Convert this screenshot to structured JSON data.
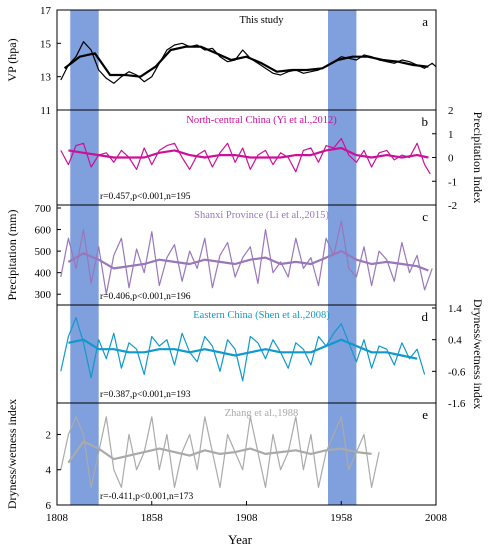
{
  "figure": {
    "x_axis_label": "Year",
    "x_ticks": [
      "1808",
      "1858",
      "1908",
      "1958",
      "2008"
    ],
    "x_range": [
      1808,
      2008
    ],
    "highlight_periods": [
      [
        1815,
        1830
      ],
      [
        1951,
        1966
      ]
    ],
    "highlight_color": "#7f9fdd"
  },
  "chart_data": [
    {
      "type": "line",
      "panel_letter": "a",
      "legend": "This study",
      "ylabel_left": "VP (hpa)",
      "ylim": [
        11,
        17
      ],
      "yticks": [
        "11",
        "13",
        "15",
        "17"
      ],
      "color": "#000000",
      "x_start": 1810,
      "x_end": 2008,
      "series": [
        {
          "name": "annual",
          "x": [
            1810,
            1814,
            1818,
            1822,
            1826,
            1830,
            1834,
            1838,
            1842,
            1846,
            1850,
            1854,
            1858,
            1862,
            1866,
            1870,
            1874,
            1878,
            1882,
            1886,
            1890,
            1894,
            1898,
            1902,
            1906,
            1910,
            1914,
            1918,
            1922,
            1926,
            1930,
            1934,
            1938,
            1942,
            1946,
            1950,
            1954,
            1958,
            1962,
            1966,
            1970,
            1974,
            1978,
            1982,
            1986,
            1990,
            1994,
            1998,
            2002,
            2006,
            2008
          ],
          "values": [
            12.8,
            13.7,
            14.2,
            15.1,
            14.6,
            13.4,
            12.9,
            12.6,
            13.0,
            13.3,
            13.1,
            12.7,
            13.0,
            13.8,
            14.6,
            14.9,
            15.0,
            14.8,
            14.9,
            14.6,
            14.7,
            14.2,
            13.9,
            14.0,
            14.6,
            14.1,
            13.8,
            13.5,
            13.2,
            13.1,
            13.3,
            13.4,
            13.2,
            13.3,
            13.4,
            13.6,
            13.9,
            14.2,
            14.1,
            14.0,
            14.3,
            14.2,
            14.0,
            13.9,
            13.8,
            14.0,
            13.9,
            13.7,
            13.5,
            13.8,
            13.6
          ]
        },
        {
          "name": "11-year mean",
          "x": [
            1812,
            1820,
            1828,
            1836,
            1844,
            1852,
            1860,
            1868,
            1876,
            1884,
            1892,
            1900,
            1908,
            1916,
            1924,
            1932,
            1940,
            1948,
            1956,
            1964,
            1972,
            1980,
            1988,
            1996,
            2004
          ],
          "values": [
            13.5,
            14.2,
            14.4,
            13.1,
            13.1,
            13.0,
            13.6,
            14.6,
            14.8,
            14.8,
            14.4,
            14.0,
            14.2,
            13.8,
            13.3,
            13.4,
            13.4,
            13.5,
            14.0,
            14.2,
            14.2,
            14.0,
            13.9,
            13.7,
            13.6
          ]
        }
      ]
    },
    {
      "type": "line",
      "panel_letter": "b",
      "legend": "North-central China (Yi et al.,2012)",
      "ylabel_right": "Precipitation Index",
      "ylim": [
        -2,
        2
      ],
      "yticks": [
        "-2",
        "-1",
        "0",
        "1",
        "2"
      ],
      "color": "#cc1199",
      "stat": "r=0.457,p<0.001,n=195",
      "x_start": 1810,
      "x_end": 2005,
      "series": [
        {
          "name": "annual",
          "x": [
            1810,
            1814,
            1818,
            1822,
            1826,
            1830,
            1834,
            1838,
            1842,
            1846,
            1850,
            1854,
            1858,
            1862,
            1866,
            1870,
            1874,
            1878,
            1882,
            1886,
            1890,
            1894,
            1898,
            1902,
            1906,
            1910,
            1914,
            1918,
            1922,
            1926,
            1930,
            1934,
            1938,
            1942,
            1946,
            1950,
            1954,
            1958,
            1962,
            1966,
            1970,
            1974,
            1978,
            1982,
            1986,
            1990,
            1994,
            1998,
            2002,
            2005
          ],
          "values": [
            0.3,
            -0.3,
            0.5,
            0.6,
            -0.4,
            0.1,
            0.2,
            -0.2,
            0.3,
            0.0,
            -0.5,
            0.4,
            -0.3,
            0.3,
            0.5,
            0.6,
            0.0,
            -0.5,
            0.1,
            0.3,
            -0.4,
            0.2,
            0.6,
            -0.2,
            0.4,
            -0.5,
            0.1,
            0.3,
            -0.3,
            0.2,
            0.0,
            -0.6,
            0.3,
            0.4,
            -0.2,
            0.5,
            0.4,
            0.8,
            0.1,
            -0.2,
            0.3,
            -0.4,
            0.2,
            0.3,
            -0.1,
            0.1,
            0.0,
            0.6,
            -0.3,
            -0.7
          ]
        },
        {
          "name": "11-year mean",
          "x": [
            1814,
            1822,
            1830,
            1838,
            1846,
            1854,
            1862,
            1870,
            1878,
            1886,
            1894,
            1902,
            1910,
            1918,
            1926,
            1934,
            1942,
            1950,
            1958,
            1966,
            1974,
            1982,
            1990,
            1998,
            2004
          ],
          "values": [
            0.3,
            0.2,
            0.1,
            0.0,
            0.0,
            0.0,
            0.2,
            0.3,
            0.1,
            0.0,
            0.1,
            0.1,
            0.0,
            0.0,
            0.0,
            0.1,
            0.1,
            0.3,
            0.4,
            0.1,
            0.0,
            0.1,
            0.0,
            0.1,
            0.0
          ]
        }
      ]
    },
    {
      "type": "line",
      "panel_letter": "c",
      "legend": "Shanxi Province (Li et al.,2015)",
      "ylabel_left": "Precipitation (mm)",
      "ylim": [
        250,
        700
      ],
      "yticks": [
        "300",
        "400",
        "500",
        "600",
        "700"
      ],
      "color": "#9977bb",
      "stat": "r=0.406,p<0.001,n=196",
      "x_start": 1810,
      "x_end": 2006,
      "series": [
        {
          "name": "annual",
          "x": [
            1810,
            1814,
            1818,
            1822,
            1826,
            1830,
            1834,
            1838,
            1842,
            1846,
            1850,
            1854,
            1858,
            1862,
            1866,
            1870,
            1874,
            1878,
            1882,
            1886,
            1890,
            1894,
            1898,
            1902,
            1906,
            1910,
            1914,
            1918,
            1922,
            1926,
            1930,
            1934,
            1938,
            1942,
            1946,
            1950,
            1954,
            1958,
            1962,
            1966,
            1970,
            1974,
            1978,
            1982,
            1986,
            1990,
            1994,
            1998,
            2002,
            2006
          ],
          "values": [
            380,
            560,
            420,
            600,
            350,
            520,
            300,
            480,
            560,
            330,
            510,
            400,
            590,
            340,
            470,
            530,
            360,
            500,
            420,
            560,
            330,
            480,
            540,
            380,
            470,
            520,
            350,
            600,
            400,
            450,
            380,
            560,
            420,
            470,
            340,
            560,
            480,
            640,
            420,
            380,
            520,
            340,
            500,
            460,
            360,
            540,
            400,
            480,
            320,
            420
          ]
        },
        {
          "name": "11-year mean",
          "x": [
            1814,
            1822,
            1830,
            1838,
            1846,
            1854,
            1862,
            1870,
            1878,
            1886,
            1894,
            1902,
            1910,
            1918,
            1926,
            1934,
            1942,
            1950,
            1958,
            1966,
            1974,
            1982,
            1990,
            1998,
            2004
          ],
          "values": [
            450,
            490,
            460,
            420,
            430,
            440,
            460,
            450,
            440,
            460,
            450,
            440,
            460,
            470,
            440,
            450,
            440,
            470,
            500,
            460,
            440,
            450,
            440,
            430,
            410
          ]
        }
      ]
    },
    {
      "type": "line",
      "panel_letter": "d",
      "legend": "Eastern China (Shen et al.,2008)",
      "ylabel_right": "Dryness/wetness index",
      "ylim": [
        -1.6,
        1.4
      ],
      "yticks": [
        "-1.6",
        "-0.6",
        "0.4",
        "1.4"
      ],
      "color": "#1199cc",
      "stat": "r=0.387,p<0.001,n=193",
      "x_start": 1810,
      "x_end": 2002,
      "series": [
        {
          "name": "annual",
          "x": [
            1810,
            1814,
            1818,
            1822,
            1826,
            1830,
            1834,
            1838,
            1842,
            1846,
            1850,
            1854,
            1858,
            1862,
            1866,
            1870,
            1874,
            1878,
            1882,
            1886,
            1890,
            1894,
            1898,
            1902,
            1906,
            1910,
            1914,
            1918,
            1922,
            1926,
            1930,
            1934,
            1938,
            1942,
            1946,
            1950,
            1954,
            1958,
            1962,
            1966,
            1970,
            1974,
            1978,
            1982,
            1986,
            1990,
            1994,
            1998,
            2002
          ],
          "values": [
            -0.6,
            0.5,
            1.1,
            0.3,
            -0.8,
            0.4,
            -0.2,
            0.6,
            -0.5,
            0.3,
            0.1,
            -0.7,
            0.5,
            0.2,
            0.4,
            -0.4,
            0.6,
            0.0,
            -0.3,
            0.5,
            0.2,
            -0.6,
            0.4,
            0.1,
            -0.9,
            0.5,
            0.3,
            -0.2,
            0.4,
            0.0,
            -0.5,
            0.3,
            0.1,
            -0.4,
            0.5,
            0.2,
            0.6,
            0.9,
            0.3,
            -0.3,
            0.4,
            -0.5,
            0.2,
            0.1,
            -0.4,
            0.3,
            -0.2,
            0.1,
            -0.7
          ]
        },
        {
          "name": "11-year mean",
          "x": [
            1814,
            1822,
            1830,
            1838,
            1846,
            1854,
            1862,
            1870,
            1878,
            1886,
            1894,
            1902,
            1910,
            1918,
            1926,
            1934,
            1942,
            1950,
            1958,
            1966,
            1974,
            1982,
            1990,
            1998
          ],
          "values": [
            0.3,
            0.4,
            0.1,
            0.1,
            0.0,
            0.0,
            0.1,
            0.1,
            0.0,
            0.1,
            0.0,
            -0.1,
            0.0,
            0.1,
            0.0,
            0.0,
            0.0,
            0.2,
            0.4,
            0.2,
            0.0,
            0.0,
            -0.1,
            -0.2
          ]
        }
      ]
    },
    {
      "type": "line",
      "panel_letter": "e",
      "legend": "Zhang et al.,1988",
      "ylabel_left": "Dryness/wetness index",
      "ylim": [
        0.5,
        6
      ],
      "y_inverted": true,
      "yticks": [
        "2",
        "4",
        "6"
      ],
      "color": "#aaaaaa",
      "stat": "r=-0.411,p<0.001,n=173",
      "x_start": 1810,
      "x_end": 1980,
      "series": [
        {
          "name": "annual",
          "x": [
            1810,
            1814,
            1818,
            1822,
            1826,
            1830,
            1834,
            1838,
            1842,
            1846,
            1850,
            1854,
            1858,
            1862,
            1866,
            1870,
            1874,
            1878,
            1882,
            1886,
            1890,
            1894,
            1898,
            1902,
            1906,
            1910,
            1914,
            1918,
            1922,
            1926,
            1930,
            1934,
            1938,
            1942,
            1946,
            1950,
            1954,
            1958,
            1962,
            1966,
            1970,
            1974,
            1978
          ],
          "values": [
            4,
            2,
            1,
            2,
            5,
            3,
            1,
            4,
            5,
            2,
            4,
            3,
            1,
            4,
            2,
            5,
            3,
            2,
            4,
            1,
            3,
            5,
            2,
            3,
            4,
            1,
            3,
            5,
            2,
            4,
            3,
            1,
            4,
            2,
            5,
            3,
            2,
            1,
            4,
            3,
            2,
            5,
            3
          ]
        },
        {
          "name": "11-year mean",
          "x": [
            1814,
            1822,
            1830,
            1838,
            1846,
            1854,
            1862,
            1870,
            1878,
            1886,
            1894,
            1902,
            1910,
            1918,
            1926,
            1934,
            1942,
            1950,
            1958,
            1966,
            1974
          ],
          "values": [
            3.6,
            2.4,
            2.8,
            3.4,
            3.2,
            3.0,
            2.8,
            3.0,
            3.2,
            2.9,
            3.1,
            3.0,
            2.8,
            3.1,
            3.0,
            2.9,
            3.1,
            2.9,
            2.8,
            3.0,
            3.1
          ]
        }
      ]
    }
  ]
}
